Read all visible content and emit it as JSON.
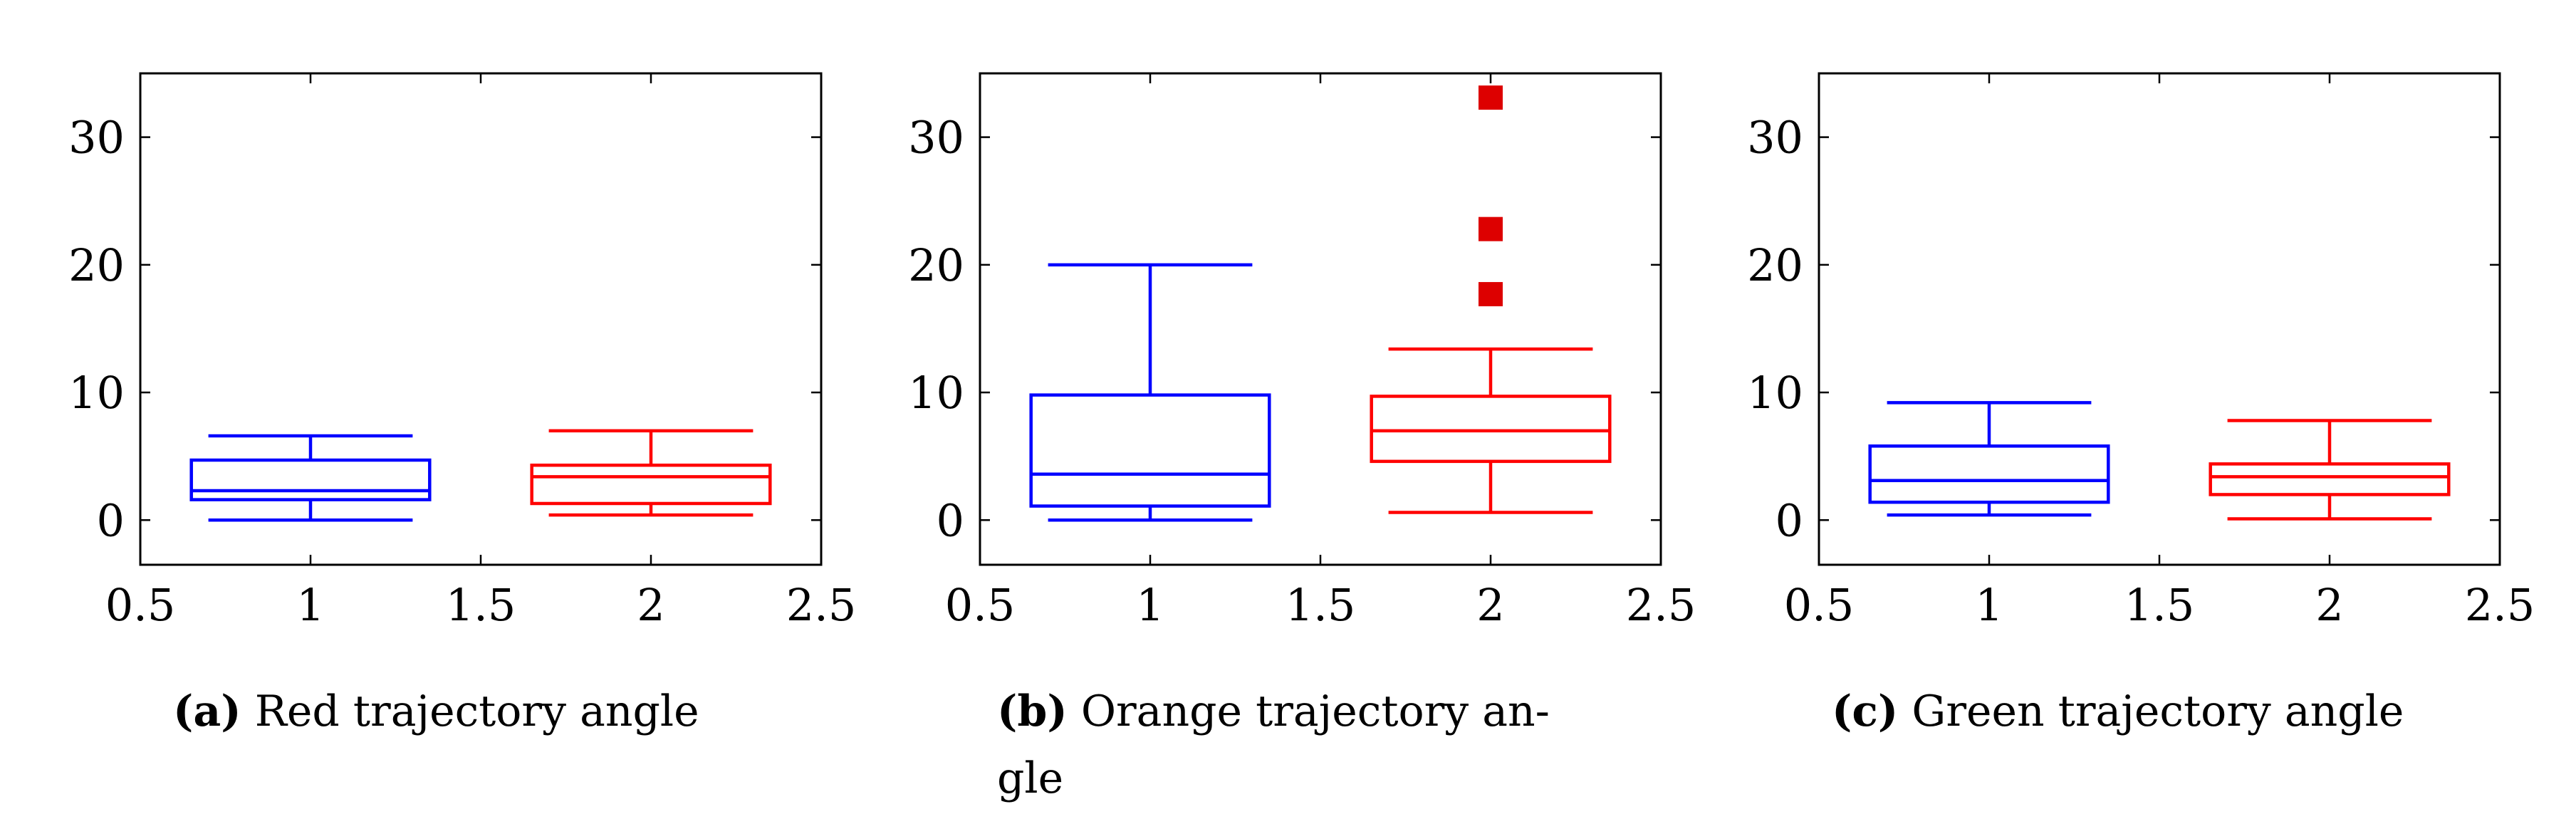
{
  "colors": {
    "series_1": "#0000ff",
    "series_2": "#ff0000",
    "outlier": "#dd0000",
    "axis": "#000000"
  },
  "chart_data": [
    {
      "type": "box",
      "caption_tag": "(a)",
      "caption_text": "Red trajectory angle",
      "xlim": [
        0.5,
        2.5
      ],
      "ylim": [
        -3.5,
        35
      ],
      "xticks": [
        0.5,
        1,
        1.5,
        2,
        2.5
      ],
      "xtick_labels": [
        "0.5",
        "1",
        "1.5",
        "2",
        "2.5"
      ],
      "yticks": [
        0,
        10,
        20,
        30
      ],
      "ytick_labels": [
        "0",
        "10",
        "20",
        "30"
      ],
      "boxes": [
        {
          "position": 1,
          "color": "series_1",
          "whisker_low": 0.0,
          "q1": 1.6,
          "median": 2.3,
          "q3": 4.7,
          "whisker_high": 6.6,
          "outliers": []
        },
        {
          "position": 2,
          "color": "series_2",
          "whisker_low": 0.4,
          "q1": 1.3,
          "median": 3.4,
          "q3": 4.3,
          "whisker_high": 7.0,
          "outliers": []
        }
      ]
    },
    {
      "type": "box",
      "caption_tag": "(b)",
      "caption_text": "Orange trajectory an-",
      "caption_text_2": "gle",
      "xlim": [
        0.5,
        2.5
      ],
      "ylim": [
        -3.5,
        35
      ],
      "xticks": [
        0.5,
        1,
        1.5,
        2,
        2.5
      ],
      "xtick_labels": [
        "0.5",
        "1",
        "1.5",
        "2",
        "2.5"
      ],
      "yticks": [
        0,
        10,
        20,
        30
      ],
      "ytick_labels": [
        "0",
        "10",
        "20",
        "30"
      ],
      "boxes": [
        {
          "position": 1,
          "color": "series_1",
          "whisker_low": 0.0,
          "q1": 1.1,
          "median": 3.6,
          "q3": 9.8,
          "whisker_high": 20.0,
          "outliers": []
        },
        {
          "position": 2,
          "color": "series_2",
          "whisker_low": 0.6,
          "q1": 4.6,
          "median": 7.0,
          "q3": 9.7,
          "whisker_high": 13.4,
          "outliers": [
            17.7,
            22.8,
            33.1
          ]
        }
      ]
    },
    {
      "type": "box",
      "caption_tag": "(c)",
      "caption_text": "Green trajectory angle",
      "xlim": [
        0.5,
        2.5
      ],
      "ylim": [
        -3.5,
        35
      ],
      "xticks": [
        0.5,
        1,
        1.5,
        2,
        2.5
      ],
      "xtick_labels": [
        "0.5",
        "1",
        "1.5",
        "2",
        "2.5"
      ],
      "yticks": [
        0,
        10,
        20,
        30
      ],
      "ytick_labels": [
        "0",
        "10",
        "20",
        "30"
      ],
      "boxes": [
        {
          "position": 1,
          "color": "series_1",
          "whisker_low": 0.4,
          "q1": 1.4,
          "median": 3.1,
          "q3": 5.8,
          "whisker_high": 9.2,
          "outliers": []
        },
        {
          "position": 2,
          "color": "series_2",
          "whisker_low": 0.1,
          "q1": 2.0,
          "median": 3.4,
          "q3": 4.4,
          "whisker_high": 7.8,
          "outliers": []
        }
      ]
    }
  ]
}
